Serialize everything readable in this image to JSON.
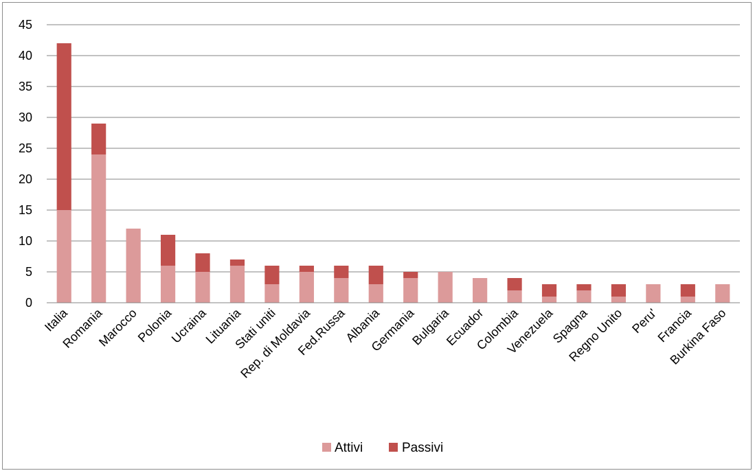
{
  "chart_data": {
    "type": "bar",
    "stacked": true,
    "categories": [
      "Italia",
      "Romania",
      "Marocco",
      "Polonia",
      "Ucraina",
      "Lituania",
      "Stati  uniti",
      "Rep. di Moldavia",
      "Fed.Russa",
      "Albania",
      "Germania",
      "Bulgaria",
      "Ecuador",
      "Colombia",
      "Venezuela",
      "Spagna",
      "Regno Unito",
      "Peru'",
      "Francia",
      "Burkina Faso"
    ],
    "series": [
      {
        "name": "Attivi",
        "color": "#dc9a9a",
        "values": [
          15,
          24,
          12,
          6,
          5,
          6,
          3,
          5,
          4,
          3,
          4,
          5,
          4,
          2,
          1,
          2,
          1,
          3,
          1,
          3
        ]
      },
      {
        "name": "Passivi",
        "color": "#c0504d",
        "values": [
          27,
          5,
          0,
          5,
          3,
          1,
          3,
          1,
          2,
          3,
          1,
          0,
          0,
          2,
          2,
          1,
          2,
          0,
          2,
          0
        ]
      }
    ],
    "ylim": [
      0,
      45
    ],
    "yticks": [
      0,
      5,
      10,
      15,
      20,
      25,
      30,
      35,
      40,
      45
    ],
    "grid": true,
    "legend_position": "bottom"
  }
}
